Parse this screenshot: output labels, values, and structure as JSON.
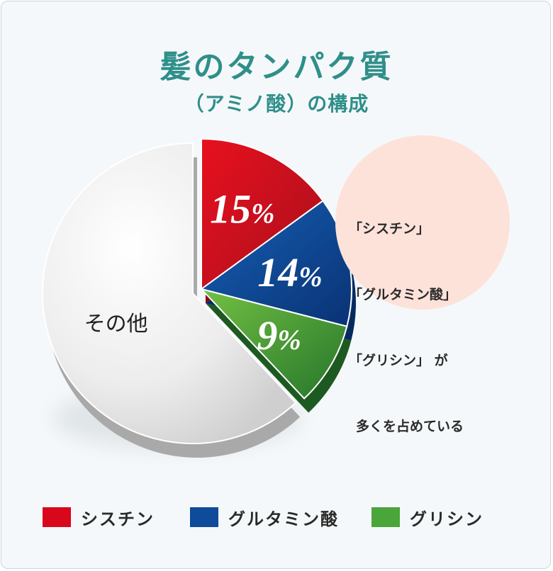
{
  "title": "髪のタンパク質",
  "subtitle": "（アミノ酸）の構成",
  "chart_data": {
    "type": "pie",
    "slices": [
      {
        "name": "シスチン",
        "value": 15,
        "label": "15",
        "unit": "%",
        "color": "#d9071b"
      },
      {
        "name": "グルタミン酸",
        "value": 14,
        "label": "14",
        "unit": "%",
        "color": "#0e4b9a"
      },
      {
        "name": "グリシン",
        "value": 9,
        "label": "9",
        "unit": "%",
        "color": "#4aa53a"
      },
      {
        "name": "その他",
        "value": 62,
        "label": "その他",
        "color": "#e6e6e6"
      }
    ],
    "legend": {
      "placement": "bottom",
      "entries": [
        {
          "label": "シスチン",
          "color": "#d9071b"
        },
        {
          "label": "グルタミン酸",
          "color": "#0e4b9a"
        },
        {
          "label": "グリシン",
          "color": "#4aa53a"
        }
      ]
    }
  },
  "callout": {
    "lines": [
      "「シスチン」",
      "「グルタミン酸」",
      "「グリシン」 が",
      "多くを占めている"
    ]
  },
  "colors": {
    "title": "#2f8f8a",
    "background": "#f5f8fa",
    "callout_bg": "#fde2da"
  }
}
